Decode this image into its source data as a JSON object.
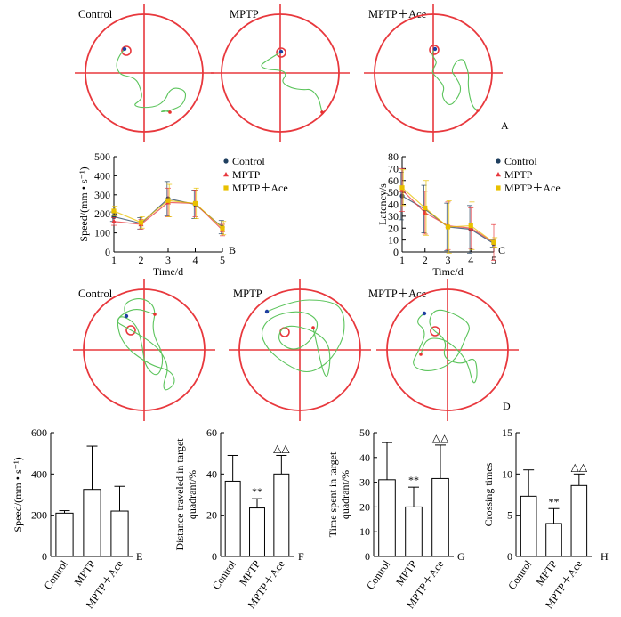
{
  "panel_letters": [
    "A",
    "B",
    "C",
    "D",
    "E",
    "F",
    "G",
    "H"
  ],
  "colors": {
    "control": "#1f3f5f",
    "mptp": "#e8383d",
    "ace": "#e8c000",
    "path": "#5cc45c",
    "pool": "#e8383d"
  },
  "chart_data": [
    {
      "id": "A",
      "type": "trajectory",
      "kind": "training",
      "titles": [
        "Control",
        "MPTP",
        "MPTP＋Ace"
      ]
    },
    {
      "id": "B",
      "type": "line",
      "panel_label": "B",
      "xlabel": "Time/d",
      "ylabel": "Speed/(mm • s⁻¹)",
      "x": [
        1,
        2,
        3,
        4,
        5
      ],
      "xticks": [
        "1",
        "2",
        "3",
        "4",
        "5"
      ],
      "ylim": [
        0,
        500
      ],
      "yticks": [
        "0",
        "100",
        "200",
        "300",
        "400",
        "500"
      ],
      "legend": [
        "Control",
        "MPTP",
        "MPTP＋Ace"
      ],
      "series": [
        {
          "name": "Control",
          "values": [
            185,
            150,
            280,
            250,
            130
          ],
          "err": [
            25,
            30,
            90,
            75,
            35
          ]
        },
        {
          "name": "MPTP",
          "values": [
            160,
            145,
            260,
            255,
            115
          ],
          "err": [
            20,
            25,
            75,
            70,
            30
          ]
        },
        {
          "name": "MPTP＋Ace",
          "values": [
            215,
            155,
            270,
            255,
            125
          ],
          "err": [
            25,
            30,
            85,
            80,
            35
          ]
        }
      ]
    },
    {
      "id": "C",
      "type": "line",
      "panel_label": "C",
      "xlabel": "Time/d",
      "ylabel": "Latency/s",
      "x": [
        1,
        2,
        3,
        4,
        5
      ],
      "xticks": [
        "1",
        "2",
        "3",
        "4",
        "5"
      ],
      "ylim": [
        0,
        80
      ],
      "yticks": [
        "0",
        "10",
        "20",
        "30",
        "40",
        "50",
        "60",
        "70",
        "80"
      ],
      "legend": [
        "Control",
        "MPTP",
        "MPTP＋Ace"
      ],
      "series": [
        {
          "name": "Control",
          "values": [
            47,
            36,
            21,
            19,
            7
          ],
          "err": [
            20,
            20,
            20,
            20,
            3
          ]
        },
        {
          "name": "MPTP",
          "values": [
            52,
            33,
            22,
            20,
            8
          ],
          "err": [
            18,
            18,
            20,
            17,
            15
          ]
        },
        {
          "name": "MPTP＋Ace",
          "values": [
            54,
            37,
            21,
            22,
            8
          ],
          "err": [
            15,
            23,
            22,
            20,
            4
          ]
        }
      ]
    },
    {
      "id": "D",
      "type": "trajectory",
      "kind": "probe",
      "titles": [
        "Control",
        "MPTP",
        "MPTP＋Ace"
      ]
    },
    {
      "id": "E",
      "type": "bar",
      "panel_label": "E",
      "ylabel": "Speed/(mm • s⁻¹)",
      "categories": [
        "Control",
        "MPTP",
        "MPTP＋Ace"
      ],
      "values": [
        210,
        325,
        220
      ],
      "err": [
        12,
        210,
        120
      ],
      "ylim": [
        0,
        600
      ],
      "yticks": [
        "0",
        "200",
        "400",
        "600"
      ],
      "marks": [
        "",
        "",
        ""
      ]
    },
    {
      "id": "F",
      "type": "bar",
      "panel_label": "F",
      "ylabel": "Distance traveled in target quadrant/%",
      "categories": [
        "Control",
        "MPTP",
        "MPTP＋Ace"
      ],
      "values": [
        36.5,
        23.5,
        40
      ],
      "err": [
        12.5,
        4.5,
        9
      ],
      "ylim": [
        0,
        60
      ],
      "yticks": [
        "0",
        "20",
        "40",
        "60"
      ],
      "marks": [
        "",
        "**",
        "△△"
      ]
    },
    {
      "id": "G",
      "type": "bar",
      "panel_label": "G",
      "ylabel": "Time spent in target quadrant/%",
      "categories": [
        "Control",
        "MPTP",
        "MPTP＋Ace"
      ],
      "values": [
        31,
        20,
        31.5
      ],
      "err": [
        15,
        8,
        13.5
      ],
      "ylim": [
        0,
        50
      ],
      "yticks": [
        "0",
        "10",
        "20",
        "30",
        "40",
        "50"
      ],
      "marks": [
        "",
        "**",
        "△△"
      ]
    },
    {
      "id": "H",
      "type": "bar",
      "panel_label": "H",
      "ylabel": "Crossing times",
      "categories": [
        "Control",
        "MPTP",
        "MPTP＋Ace"
      ],
      "values": [
        7.3,
        4,
        8.6
      ],
      "err": [
        3.2,
        1.8,
        1.4
      ],
      "ylim": [
        0,
        15
      ],
      "yticks": [
        "0",
        "5",
        "10",
        "15"
      ],
      "marks": [
        "",
        "**",
        "△△"
      ]
    }
  ]
}
